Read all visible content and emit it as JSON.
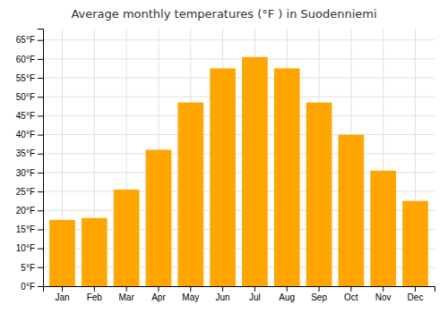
{
  "chart_data": {
    "type": "bar",
    "title": "Average monthly temperatures (°F ) in Suodenniemi",
    "categories": [
      "Jan",
      "Feb",
      "Mar",
      "Apr",
      "May",
      "Jun",
      "Jul",
      "Aug",
      "Sep",
      "Oct",
      "Nov",
      "Dec"
    ],
    "values": [
      17.5,
      18.0,
      25.5,
      36.0,
      48.5,
      57.5,
      60.5,
      57.5,
      48.5,
      40.0,
      30.5,
      22.5
    ],
    "color": "#FFA500",
    "ylim": [
      0,
      68
    ],
    "yticks": [
      {
        "value": 0,
        "label": "0°F"
      },
      {
        "value": 5,
        "label": "5°F"
      },
      {
        "value": 10,
        "label": "10°F"
      },
      {
        "value": 15,
        "label": "15°F"
      },
      {
        "value": 20,
        "label": "20°F"
      },
      {
        "value": 25,
        "label": "25°F"
      },
      {
        "value": 30,
        "label": "30°F"
      },
      {
        "value": 35,
        "label": "35°F"
      },
      {
        "value": 40,
        "label": "40°F"
      },
      {
        "value": 45,
        "label": "45°F"
      },
      {
        "value": 50,
        "label": "50°F"
      },
      {
        "value": 55,
        "label": "55°F"
      },
      {
        "value": 60,
        "label": "60°F"
      },
      {
        "value": 65,
        "label": "65°F"
      }
    ],
    "grid": true
  }
}
